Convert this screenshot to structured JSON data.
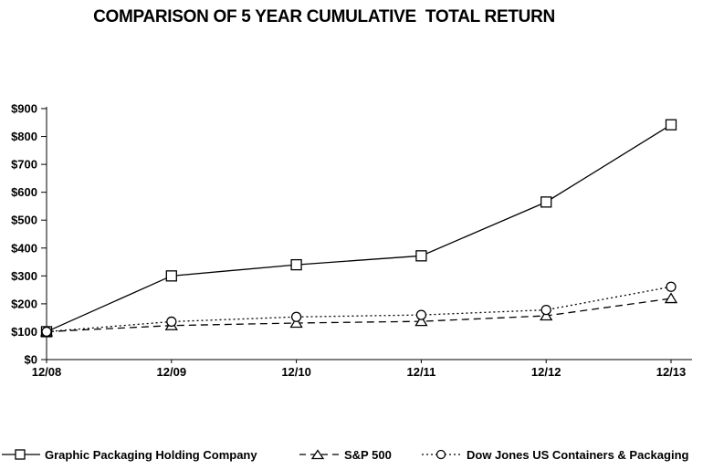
{
  "title": "COMPARISON OF 5 YEAR CUMULATIVE  TOTAL RETURN",
  "chart_data": {
    "type": "line",
    "title": "COMPARISON OF 5 YEAR CUMULATIVE  TOTAL RETURN",
    "categories": [
      "12/08",
      "12/09",
      "12/10",
      "12/11",
      "12/12",
      "12/13"
    ],
    "series": [
      {
        "name": "Graphic Packaging Holding Company",
        "line_style": "solid",
        "marker": "square",
        "values": [
          100,
          300,
          340,
          372,
          565,
          842
        ]
      },
      {
        "name": "S&P 500",
        "line_style": "dashed",
        "marker": "triangle",
        "values": [
          100,
          122,
          131,
          137,
          157,
          219
        ]
      },
      {
        "name": "Dow Jones US Containers & Packaging",
        "line_style": "dotted",
        "marker": "circle",
        "values": [
          100,
          136,
          153,
          160,
          178,
          261
        ]
      }
    ],
    "xlabel": "",
    "ylabel": "",
    "ylim": [
      0,
      900
    ],
    "y_tick_step": 100,
    "y_tick_labels": [
      "$0",
      "$100",
      "$200",
      "$300",
      "$400",
      "$500",
      "$600",
      "$700",
      "$800",
      "$900"
    ],
    "x_tick_labels": [
      "12/08",
      "12/09",
      "12/10",
      "12/11",
      "12/12",
      "12/13"
    ],
    "grid": false,
    "legend_position": "bottom",
    "colors": {
      "line": "#000000",
      "marker_fill": "#ffffff",
      "axis": "#000000",
      "text": "#000000",
      "background": "#ffffff"
    }
  }
}
